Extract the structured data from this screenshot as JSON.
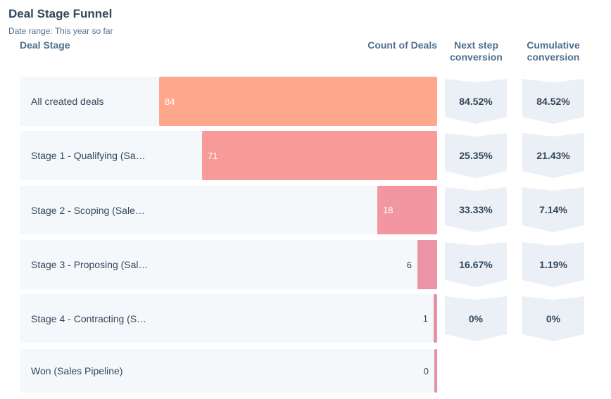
{
  "report": {
    "title": "Deal Stage Funnel",
    "date_range": "Date range:  This year so far"
  },
  "columns": {
    "stage": "Deal Stage",
    "count": "Count of Deals",
    "next": "Next step conversion",
    "cumulative": "Cumulative conversion"
  },
  "chart_data": {
    "type": "bar",
    "orientation": "horizontal",
    "categories": [
      "All created deals",
      "Stage 1 - Qualifying (Sa…",
      "Stage 2 - Scoping (Sale…",
      "Stage 3 - Proposing (Sal…",
      "Stage 4 - Contracting (S…",
      "Won (Sales Pipeline)"
    ],
    "values": [
      84,
      71,
      18,
      6,
      1,
      0
    ],
    "value_labels": [
      "84",
      "71",
      "18",
      "6",
      "1",
      "0"
    ],
    "next_step_conversion": [
      "84.52%",
      "25.35%",
      "33.33%",
      "16.67%",
      "0%"
    ],
    "cumulative_conversion": [
      "84.52%",
      "21.43%",
      "7.14%",
      "1.19%",
      "0%"
    ],
    "colors": [
      "#ffa78c",
      "#f89b98",
      "#f296a1",
      "#ec93a6",
      "#e490ab",
      "#e08fad"
    ],
    "xlim": [
      0,
      84
    ]
  }
}
